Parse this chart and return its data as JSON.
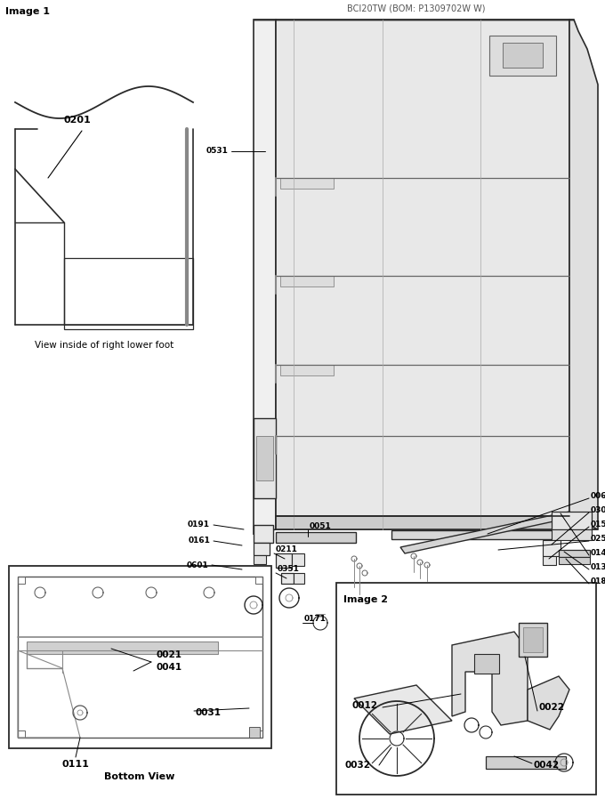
{
  "title": "BCI20TW (BOM: P1309702W W)",
  "image1_label": "Image 1",
  "image2_label": "Image 2",
  "bg_color": "#ffffff",
  "lc": "#2a2a2a",
  "foot_view_caption": "View inside of right lower foot",
  "bottom_view_caption": "Bottom View",
  "figw": 6.8,
  "figh": 8.98,
  "dpi": 100
}
